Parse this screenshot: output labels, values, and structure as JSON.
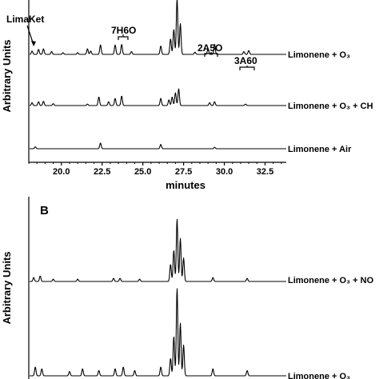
{
  "chart_data": [
    {
      "type": "line",
      "panel_label": "",
      "xlabel": "minutes",
      "ylabel": "Arbitrary Units",
      "xlim": [
        18,
        33.8
      ],
      "x_ticks": [
        "20.0",
        "22.5",
        "25.0",
        "27.5",
        "30.0",
        "32.5"
      ],
      "x_tick_values": [
        20.0,
        22.5,
        25.0,
        27.5,
        30.0,
        32.5
      ],
      "annotations": [
        {
          "text": "LimaKet",
          "x": 18.6,
          "arrow": true
        },
        {
          "text": "7H6O",
          "x": 23.6,
          "bracket": [
            23.3,
            23.9
          ]
        },
        {
          "text": "2A5O",
          "x": 29.3,
          "bracket": [
            29.0,
            29.6
          ]
        },
        {
          "text": "3A60",
          "x": 31.4,
          "bracket": [
            31.0,
            31.8
          ]
        }
      ],
      "series": [
        {
          "name": "Limonene + O₃",
          "baseline": 0.0,
          "peaks": [
            [
              18.2,
              0.06
            ],
            [
              18.6,
              0.09
            ],
            [
              18.9,
              0.1
            ],
            [
              19.4,
              0.05
            ],
            [
              20.1,
              0.03
            ],
            [
              21.0,
              0.03
            ],
            [
              21.6,
              0.1
            ],
            [
              21.8,
              0.06
            ],
            [
              22.4,
              0.17
            ],
            [
              23.3,
              0.17
            ],
            [
              23.7,
              0.18
            ],
            [
              24.3,
              0.05
            ],
            [
              26.1,
              0.15
            ],
            [
              26.7,
              0.28
            ],
            [
              26.9,
              0.45
            ],
            [
              27.1,
              1.0
            ],
            [
              27.3,
              0.55
            ],
            [
              28.2,
              0.04
            ],
            [
              29.0,
              0.1
            ],
            [
              29.4,
              0.18
            ],
            [
              31.2,
              0.05
            ],
            [
              31.5,
              0.07
            ]
          ]
        },
        {
          "name": "Limonene + O₃ + CH",
          "baseline": 0.0,
          "peaks": [
            [
              18.2,
              0.06
            ],
            [
              18.6,
              0.08
            ],
            [
              18.9,
              0.09
            ],
            [
              19.5,
              0.04
            ],
            [
              21.6,
              0.03
            ],
            [
              22.3,
              0.18
            ],
            [
              22.9,
              0.08
            ],
            [
              23.3,
              0.15
            ],
            [
              23.7,
              0.2
            ],
            [
              26.1,
              0.15
            ],
            [
              26.6,
              0.12
            ],
            [
              26.8,
              0.18
            ],
            [
              27.0,
              0.27
            ],
            [
              27.2,
              0.35
            ],
            [
              29.1,
              0.06
            ],
            [
              29.4,
              0.08
            ],
            [
              31.3,
              0.03
            ]
          ]
        },
        {
          "name": "Limonene + Air",
          "baseline": 0.0,
          "peaks": [
            [
              18.4,
              0.04
            ],
            [
              22.4,
              0.12
            ],
            [
              26.1,
              0.09
            ],
            [
              29.4,
              0.03
            ]
          ]
        }
      ]
    },
    {
      "type": "line",
      "panel_label": "B",
      "ylabel": "Arbitrary Units",
      "xlim": [
        18,
        33.8
      ],
      "series": [
        {
          "name": "Limonene + O₃ + NO",
          "baseline": 0.0,
          "peaks": [
            [
              18.3,
              0.05
            ],
            [
              18.7,
              0.07
            ],
            [
              19.5,
              0.03
            ],
            [
              21.0,
              0.03
            ],
            [
              23.2,
              0.04
            ],
            [
              23.6,
              0.04
            ],
            [
              24.8,
              0.03
            ],
            [
              26.7,
              0.22
            ],
            [
              26.9,
              0.4
            ],
            [
              27.1,
              0.8
            ],
            [
              27.3,
              0.55
            ],
            [
              27.5,
              0.3
            ],
            [
              29.3,
              0.05
            ],
            [
              31.4,
              0.04
            ]
          ]
        },
        {
          "name": "Limonene + O₃",
          "baseline": 0.0,
          "peaks": [
            [
              18.4,
              0.1
            ],
            [
              18.8,
              0.08
            ],
            [
              20.5,
              0.05
            ],
            [
              21.3,
              0.08
            ],
            [
              22.3,
              0.06
            ],
            [
              23.3,
              0.08
            ],
            [
              23.8,
              0.1
            ],
            [
              24.5,
              0.06
            ],
            [
              26.1,
              0.1
            ],
            [
              26.7,
              0.2
            ],
            [
              26.9,
              0.45
            ],
            [
              27.1,
              1.0
            ],
            [
              27.3,
              0.6
            ],
            [
              27.5,
              0.35
            ],
            [
              29.3,
              0.08
            ],
            [
              31.4,
              0.06
            ]
          ]
        }
      ]
    }
  ]
}
